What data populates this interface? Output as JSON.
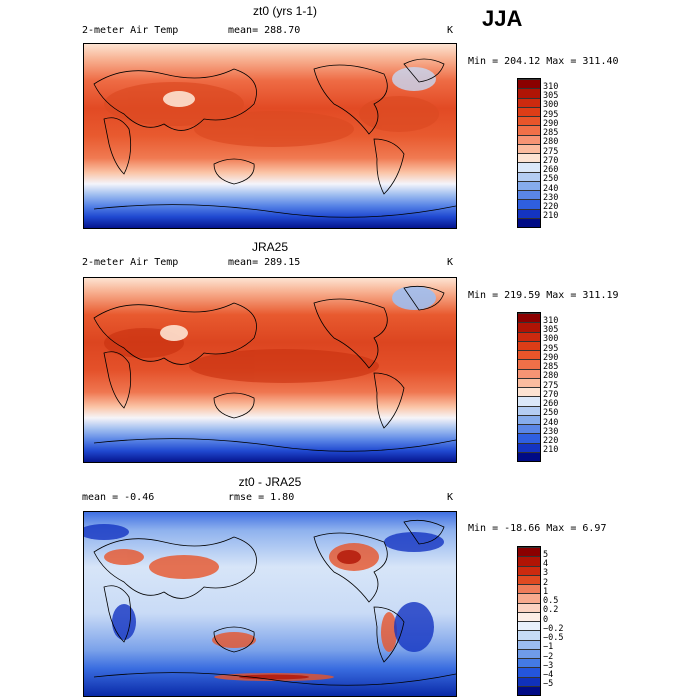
{
  "season": "JJA",
  "panels": [
    {
      "title": "zt0 (yrs 1-1)",
      "left_label": "2-meter Air Temp",
      "center_label": "mean= 288.70",
      "units": "K",
      "minmax": "Min = 204.12 Max = 311.40",
      "colorbar_labels": [
        "310",
        "305",
        "300",
        "295",
        "290",
        "285",
        "280",
        "275",
        "270",
        "260",
        "250",
        "240",
        "230",
        "220",
        "210"
      ],
      "colorbar_colors": [
        "#8b0000",
        "#b01405",
        "#cc2a0f",
        "#dd3d17",
        "#e8552a",
        "#f07048",
        "#f69474",
        "#fbbc9f",
        "#fde3d2",
        "#dbe8f9",
        "#b4cdf3",
        "#86acec",
        "#5a86e6",
        "#2f5fe0",
        "#1434c2",
        "#000b85"
      ]
    },
    {
      "title": "JRA25",
      "left_label": "2-meter Air Temp",
      "center_label": "mean= 289.15",
      "units": "K",
      "minmax": "Min = 219.59 Max = 311.19",
      "colorbar_labels": [
        "310",
        "305",
        "300",
        "295",
        "290",
        "285",
        "280",
        "275",
        "270",
        "260",
        "250",
        "240",
        "230",
        "220",
        "210"
      ],
      "colorbar_colors": [
        "#8b0000",
        "#b01405",
        "#cc2a0f",
        "#dd3d17",
        "#e8552a",
        "#f07048",
        "#f69474",
        "#fbbc9f",
        "#fde3d2",
        "#dbe8f9",
        "#b4cdf3",
        "#86acec",
        "#5a86e6",
        "#2f5fe0",
        "#1434c2",
        "#000b85"
      ]
    },
    {
      "title": "zt0 - JRA25",
      "left_label": "mean = -0.46",
      "center_label": "rmse = 1.80",
      "units": "K",
      "minmax": "Min = -18.66 Max = 6.97",
      "colorbar_labels": [
        "5",
        "4",
        "3",
        "2",
        "1",
        "0.5",
        "0.2",
        "0",
        "−0.2",
        "−0.5",
        "−1",
        "−2",
        "−3",
        "−4",
        "−5"
      ],
      "colorbar_colors": [
        "#8b0000",
        "#b01405",
        "#cc2a0f",
        "#e04a22",
        "#ef7d5a",
        "#f8ab8e",
        "#fcd3c1",
        "#fdeee6",
        "#e8f0fb",
        "#c6dbf5",
        "#9cbdf0",
        "#6f9be9",
        "#447ae4",
        "#2455db",
        "#1031bb",
        "#000b85"
      ]
    }
  ]
}
